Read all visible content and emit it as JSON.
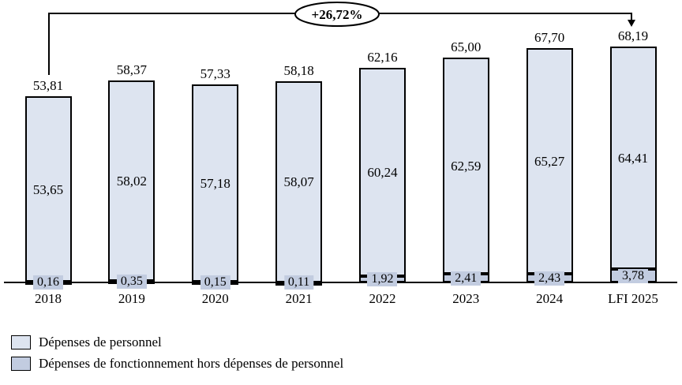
{
  "chart_data": {
    "type": "bar",
    "stacked": true,
    "title": "",
    "xlabel": "",
    "ylabel": "",
    "grid": false,
    "legend_position": "bottom-left",
    "categories": [
      "2018",
      "2019",
      "2020",
      "2021",
      "2022",
      "2023",
      "2024",
      "LFI 2025"
    ],
    "series": [
      {
        "name": "Dépenses de personnel",
        "color": "#dde4f0",
        "values": [
          53.65,
          58.02,
          57.18,
          58.07,
          60.24,
          62.59,
          65.27,
          64.41
        ],
        "labels": [
          "53,65",
          "58,02",
          "57,18",
          "58,07",
          "60,24",
          "62,59",
          "65,27",
          "64,41"
        ]
      },
      {
        "name": "Dépenses de fonctionnement hors dépenses de personnel",
        "color": "#c2cce0",
        "values": [
          0.16,
          0.35,
          0.15,
          0.11,
          1.92,
          2.41,
          2.43,
          3.78
        ],
        "labels": [
          "0,16",
          "0,35",
          "0,15",
          "0,11",
          "1,92",
          "2,41",
          "2,43",
          "3,78"
        ]
      }
    ],
    "totals": [
      53.81,
      58.37,
      57.33,
      58.18,
      62.16,
      65.0,
      67.7,
      68.19
    ],
    "total_labels": [
      "53,81",
      "58,37",
      "57,33",
      "58,18",
      "62,16",
      "65,00",
      "67,70",
      "68,19"
    ],
    "annotation": {
      "text": "+26,72%",
      "from_category": "2018",
      "to_category": "LFI 2025"
    },
    "legend": [
      {
        "label": "Dépenses de personnel",
        "color": "#dde4f0"
      },
      {
        "label": "Dépenses de fonctionnement hors dépenses de personnel",
        "color": "#c2cce0"
      }
    ],
    "bar_border_color": "#000000",
    "axis_color": "#000000"
  }
}
